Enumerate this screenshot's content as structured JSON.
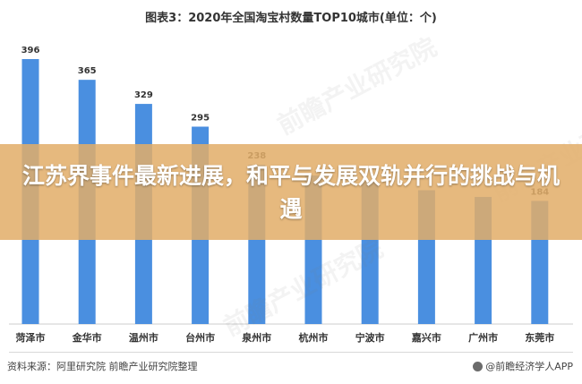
{
  "chart_data": {
    "type": "bar",
    "title": "图表3：2020年全国淘宝村数量TOP10城市(单位：个)",
    "categories": [
      "菏泽市",
      "金华市",
      "温州市",
      "台州市",
      "泉州市",
      "杭州市",
      "宁波市",
      "嘉兴市",
      "广州市",
      "东莞市"
    ],
    "values": [
      396,
      365,
      329,
      295,
      238,
      222,
      212,
      200,
      190,
      184
    ],
    "data_labels": [
      "396",
      "365",
      "329",
      "295",
      "238",
      "",
      "",
      "",
      "",
      "184"
    ],
    "ylim": [
      0,
      420
    ],
    "grid": false,
    "legend": "none",
    "bar_color": "#4a8fe0"
  },
  "overlay": {
    "headline": "江苏界事件最新进展，和平与发展双轨并行的挑战与机遇",
    "color": "#e2ae69"
  },
  "footer": {
    "source": "资料来源：阿里研究院  前瞻产业研究院整理",
    "brand": "@前瞻经济学人APP"
  },
  "watermark": "前瞻产业研究院"
}
